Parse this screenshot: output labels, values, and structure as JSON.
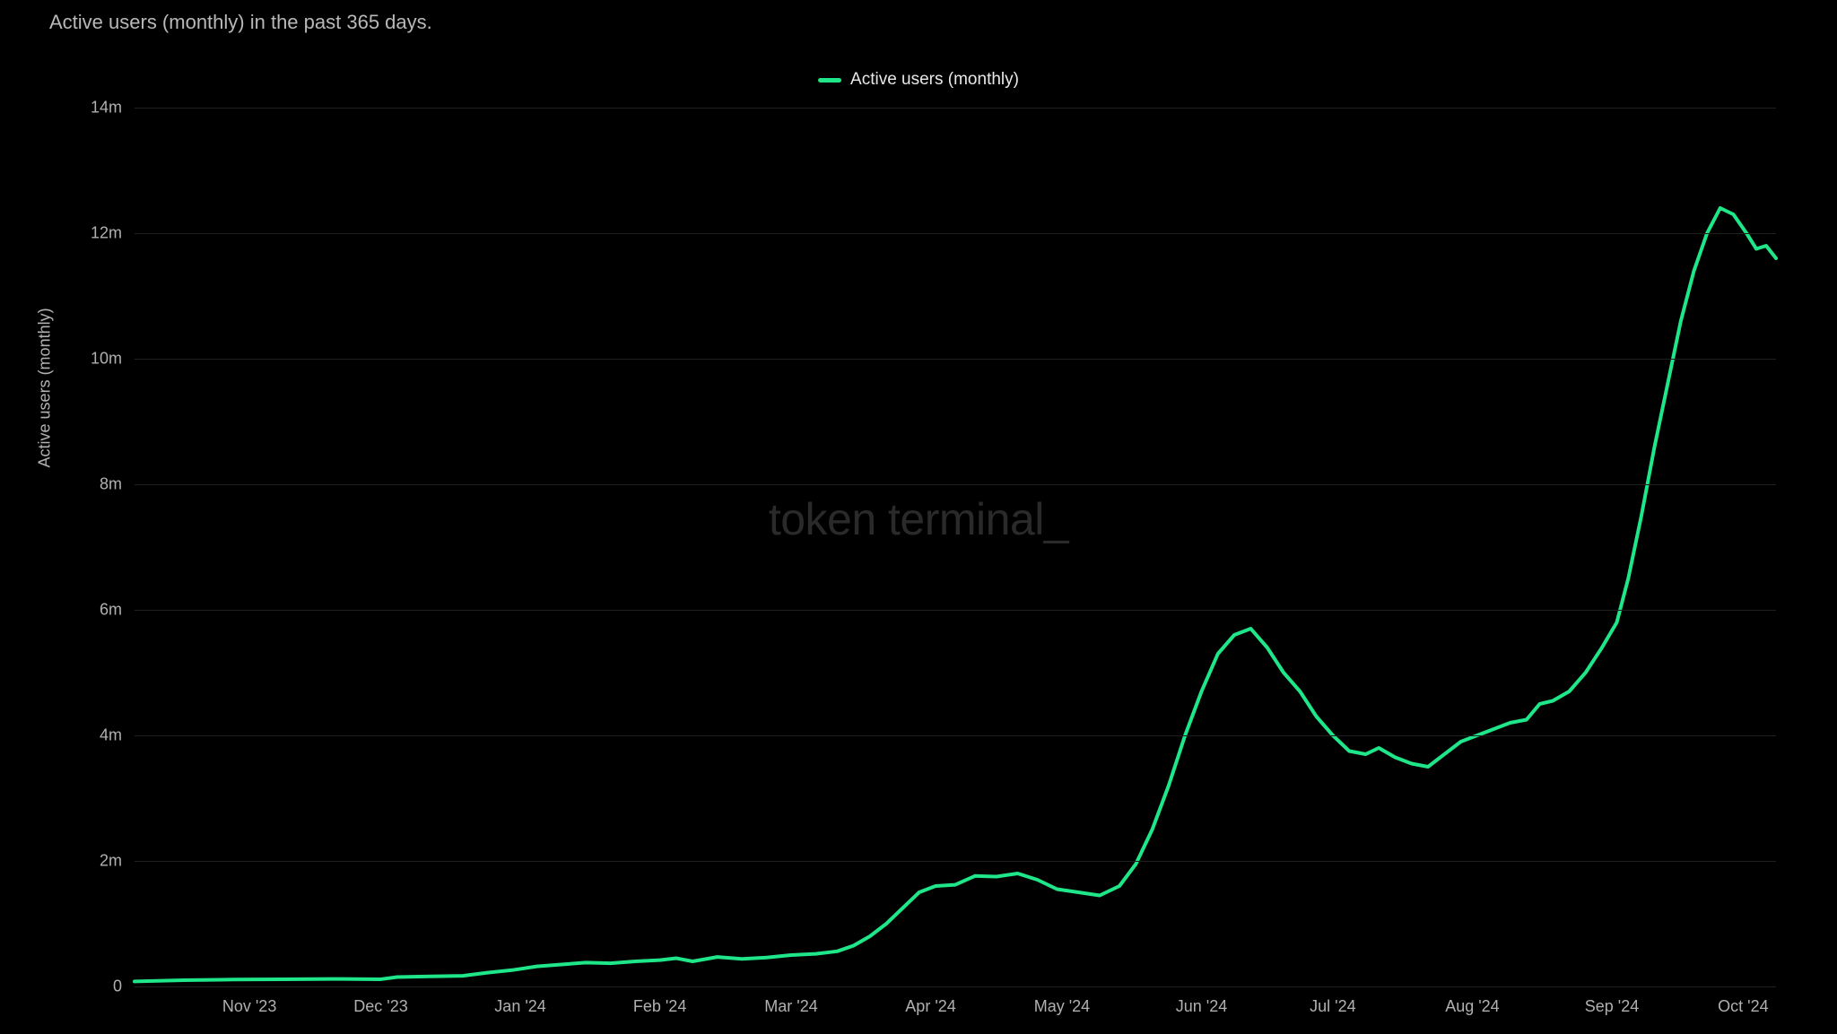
{
  "chart": {
    "type": "line",
    "title": "Active users (monthly) in the past 365 days.",
    "legend_label": "Active users (monthly)",
    "y_axis_label": "Active users (monthly)",
    "watermark": "token terminal_",
    "line_color": "#1ee689",
    "line_width": 4,
    "background_color": "#000000",
    "grid_color": "#1f1f1f",
    "text_color": "#b0b0b0",
    "title_color": "#b8b8b8",
    "legend_text_color": "#e8e8e8",
    "watermark_color": "#2a2a2a",
    "title_fontsize": 22,
    "axis_fontsize": 18,
    "legend_fontsize": 19,
    "watermark_fontsize": 50,
    "ylim": [
      0,
      14000000
    ],
    "y_ticks": [
      {
        "value": 0,
        "label": "0"
      },
      {
        "value": 2000000,
        "label": "2m"
      },
      {
        "value": 4000000,
        "label": "4m"
      },
      {
        "value": 6000000,
        "label": "6m"
      },
      {
        "value": 8000000,
        "label": "8m"
      },
      {
        "value": 10000000,
        "label": "10m"
      },
      {
        "value": 12000000,
        "label": "12m"
      },
      {
        "value": 14000000,
        "label": "14m"
      }
    ],
    "x_ticks": [
      {
        "x": 0.07,
        "label": "Nov '23"
      },
      {
        "x": 0.15,
        "label": "Dec '23"
      },
      {
        "x": 0.235,
        "label": "Jan '24"
      },
      {
        "x": 0.32,
        "label": "Feb '24"
      },
      {
        "x": 0.4,
        "label": "Mar '24"
      },
      {
        "x": 0.485,
        "label": "Apr '24"
      },
      {
        "x": 0.565,
        "label": "May '24"
      },
      {
        "x": 0.65,
        "label": "Jun '24"
      },
      {
        "x": 0.73,
        "label": "Jul '24"
      },
      {
        "x": 0.815,
        "label": "Aug '24"
      },
      {
        "x": 0.9,
        "label": "Sep '24"
      },
      {
        "x": 0.98,
        "label": "Oct '24"
      }
    ],
    "series": [
      {
        "x": 0.0,
        "y": 80000
      },
      {
        "x": 0.03,
        "y": 100000
      },
      {
        "x": 0.06,
        "y": 110000
      },
      {
        "x": 0.09,
        "y": 115000
      },
      {
        "x": 0.12,
        "y": 120000
      },
      {
        "x": 0.15,
        "y": 115000
      },
      {
        "x": 0.16,
        "y": 150000
      },
      {
        "x": 0.18,
        "y": 160000
      },
      {
        "x": 0.2,
        "y": 170000
      },
      {
        "x": 0.215,
        "y": 220000
      },
      {
        "x": 0.23,
        "y": 260000
      },
      {
        "x": 0.245,
        "y": 320000
      },
      {
        "x": 0.26,
        "y": 350000
      },
      {
        "x": 0.275,
        "y": 380000
      },
      {
        "x": 0.29,
        "y": 370000
      },
      {
        "x": 0.305,
        "y": 400000
      },
      {
        "x": 0.32,
        "y": 420000
      },
      {
        "x": 0.33,
        "y": 450000
      },
      {
        "x": 0.34,
        "y": 400000
      },
      {
        "x": 0.355,
        "y": 470000
      },
      {
        "x": 0.37,
        "y": 440000
      },
      {
        "x": 0.385,
        "y": 460000
      },
      {
        "x": 0.4,
        "y": 500000
      },
      {
        "x": 0.415,
        "y": 520000
      },
      {
        "x": 0.428,
        "y": 560000
      },
      {
        "x": 0.438,
        "y": 650000
      },
      {
        "x": 0.448,
        "y": 800000
      },
      {
        "x": 0.458,
        "y": 1000000
      },
      {
        "x": 0.468,
        "y": 1250000
      },
      {
        "x": 0.478,
        "y": 1500000
      },
      {
        "x": 0.488,
        "y": 1600000
      },
      {
        "x": 0.5,
        "y": 1620000
      },
      {
        "x": 0.512,
        "y": 1760000
      },
      {
        "x": 0.525,
        "y": 1750000
      },
      {
        "x": 0.538,
        "y": 1800000
      },
      {
        "x": 0.55,
        "y": 1700000
      },
      {
        "x": 0.562,
        "y": 1550000
      },
      {
        "x": 0.575,
        "y": 1500000
      },
      {
        "x": 0.588,
        "y": 1450000
      },
      {
        "x": 0.6,
        "y": 1600000
      },
      {
        "x": 0.61,
        "y": 1950000
      },
      {
        "x": 0.62,
        "y": 2500000
      },
      {
        "x": 0.63,
        "y": 3200000
      },
      {
        "x": 0.64,
        "y": 4000000
      },
      {
        "x": 0.65,
        "y": 4700000
      },
      {
        "x": 0.66,
        "y": 5300000
      },
      {
        "x": 0.67,
        "y": 5600000
      },
      {
        "x": 0.68,
        "y": 5700000
      },
      {
        "x": 0.69,
        "y": 5400000
      },
      {
        "x": 0.7,
        "y": 5000000
      },
      {
        "x": 0.71,
        "y": 4700000
      },
      {
        "x": 0.72,
        "y": 4300000
      },
      {
        "x": 0.73,
        "y": 4000000
      },
      {
        "x": 0.74,
        "y": 3750000
      },
      {
        "x": 0.75,
        "y": 3700000
      },
      {
        "x": 0.758,
        "y": 3800000
      },
      {
        "x": 0.768,
        "y": 3650000
      },
      {
        "x": 0.778,
        "y": 3550000
      },
      {
        "x": 0.788,
        "y": 3500000
      },
      {
        "x": 0.798,
        "y": 3700000
      },
      {
        "x": 0.808,
        "y": 3900000
      },
      {
        "x": 0.818,
        "y": 4000000
      },
      {
        "x": 0.828,
        "y": 4100000
      },
      {
        "x": 0.838,
        "y": 4200000
      },
      {
        "x": 0.848,
        "y": 4250000
      },
      {
        "x": 0.856,
        "y": 4500000
      },
      {
        "x": 0.864,
        "y": 4550000
      },
      {
        "x": 0.874,
        "y": 4700000
      },
      {
        "x": 0.884,
        "y": 5000000
      },
      {
        "x": 0.894,
        "y": 5400000
      },
      {
        "x": 0.903,
        "y": 5800000
      },
      {
        "x": 0.91,
        "y": 6500000
      },
      {
        "x": 0.918,
        "y": 7500000
      },
      {
        "x": 0.926,
        "y": 8600000
      },
      {
        "x": 0.934,
        "y": 9600000
      },
      {
        "x": 0.942,
        "y": 10600000
      },
      {
        "x": 0.95,
        "y": 11400000
      },
      {
        "x": 0.958,
        "y": 12000000
      },
      {
        "x": 0.966,
        "y": 12400000
      },
      {
        "x": 0.974,
        "y": 12300000
      },
      {
        "x": 0.982,
        "y": 12000000
      },
      {
        "x": 0.988,
        "y": 11750000
      },
      {
        "x": 0.994,
        "y": 11800000
      },
      {
        "x": 1.0,
        "y": 11600000
      }
    ]
  }
}
